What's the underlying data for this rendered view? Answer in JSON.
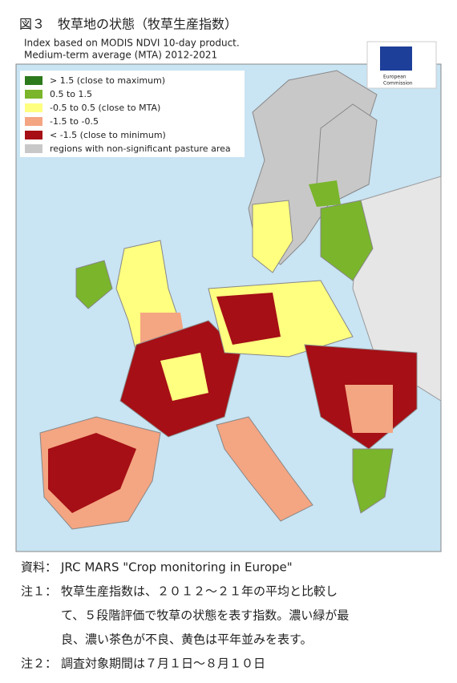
{
  "header": {
    "title": "図３　牧草地の状態（牧草生産指数）",
    "subtitle": [
      "Index based on MODIS NDVI 10-day product.",
      "Medium-term average (MTA) 2012-2021"
    ]
  },
  "logo": {
    "text": [
      "European",
      "Commission"
    ]
  },
  "legend": [
    {
      "label": "> 1.5 (close to maximum)",
      "color": "#2d7a1c"
    },
    {
      "label": "0.5 to 1.5",
      "color": "#7ab52c"
    },
    {
      "label": "-0.5 to 0.5 (close to MTA)",
      "color": "#ffff80"
    },
    {
      "label": "-1.5 to -0.5",
      "color": "#f4a582"
    },
    {
      "label": "< -1.5 (close to minimum)",
      "color": "#a50f15"
    },
    {
      "label": "regions with non-significant pasture area",
      "color": "#c8c8c8"
    }
  ],
  "notes": [
    {
      "label": "資料：",
      "lines": [
        "JRC MARS \"Crop monitoring in Europe\""
      ]
    },
    {
      "label": "注１：",
      "lines": [
        "牧草生産指数は、２０１２～２１年の平均と比較し",
        "て、５段階評価で牧草の状態を表す指数。濃い緑が最",
        "良、濃い茶色が不良、黄色は平年並みを表す。"
      ]
    },
    {
      "label": "注２：",
      "lines": [
        "調査対象期間は７月１日～８月１０日"
      ]
    }
  ]
}
